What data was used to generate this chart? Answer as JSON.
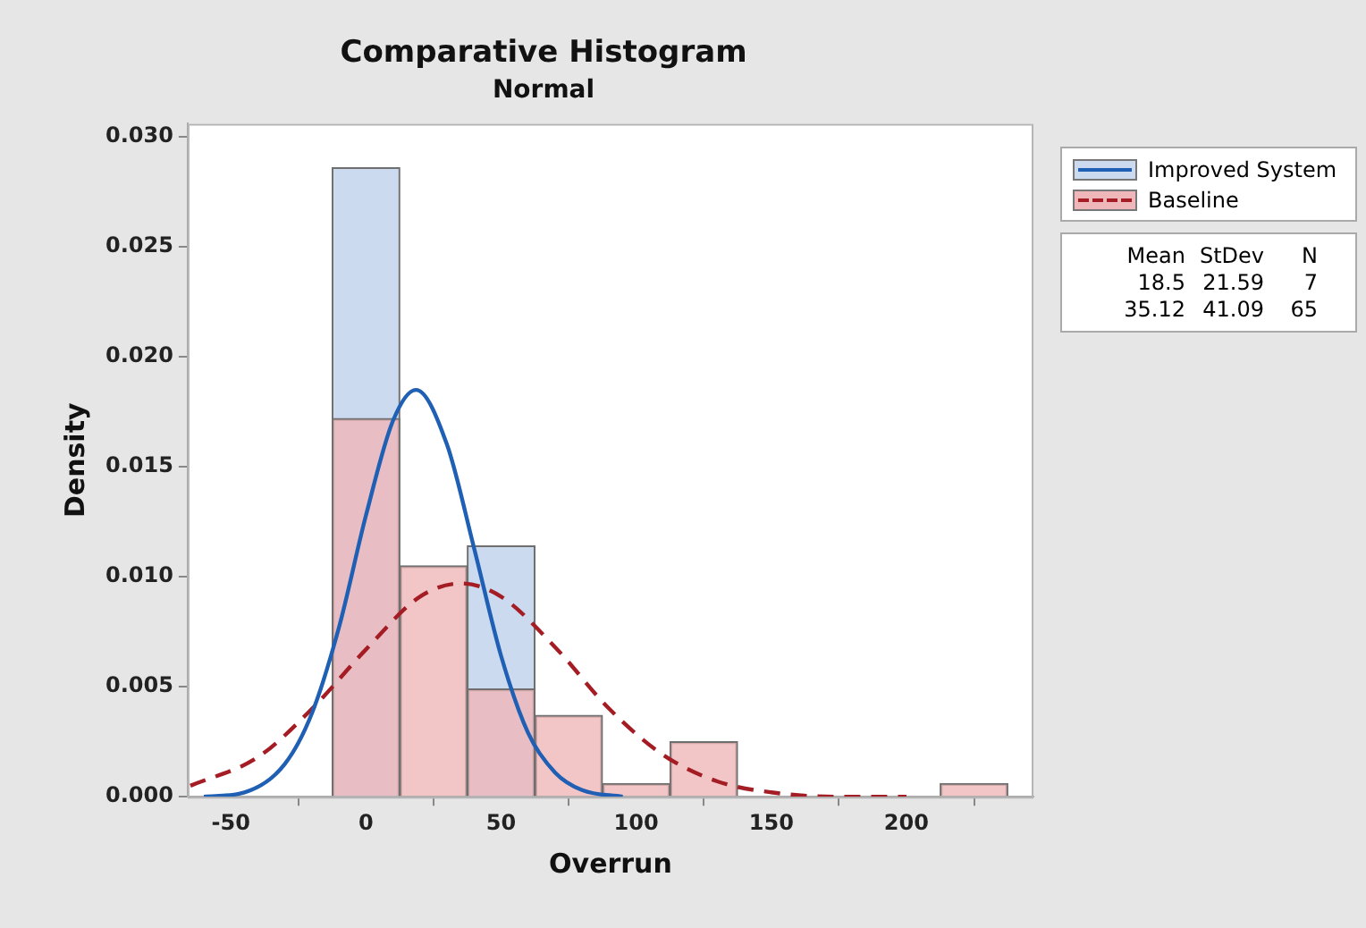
{
  "chart_data": {
    "type": "histogram",
    "title": "Comparative Histogram",
    "subtitle": "Normal",
    "xlabel": "Overrun",
    "ylabel": "Density",
    "bins": [
      -12.5,
      12.5,
      37.5,
      62.5,
      87.5,
      112.5,
      137.5,
      162.5,
      187.5,
      212.5,
      237.5
    ],
    "series": [
      {
        "name": "Improved System",
        "color": "#cbdaee",
        "values": [
          0.0286,
          0,
          0.0114,
          0,
          0,
          0,
          0,
          0,
          0,
          0
        ]
      },
      {
        "name": "Baseline",
        "color": "#efb7b9",
        "values": [
          0.0172,
          0.0105,
          0.0049,
          0.0037,
          0.0006,
          0.0025,
          0,
          0,
          0,
          0.0006
        ]
      },
      {
        "type": "line",
        "color": "#1f5fb4",
        "line_style": "solid",
        "x": [
          -60,
          -45,
          -30,
          -20,
          -10,
          0,
          10,
          18.5,
          30,
          40,
          50,
          60,
          70,
          80,
          95
        ],
        "values": [
          0,
          0.0002,
          0.0015,
          0.0038,
          0.0077,
          0.0128,
          0.0171,
          0.0185,
          0.016,
          0.0113,
          0.0064,
          0.0029,
          0.0011,
          0.0003,
          0
        ]
      },
      {
        "type": "line",
        "color": "#a51d24",
        "line_style": "dashed",
        "x": [
          -65,
          -40,
          -20,
          0,
          20,
          35.12,
          50,
          70,
          90,
          110,
          130,
          150,
          175,
          200
        ],
        "values": [
          0.0005,
          0.0018,
          0.004,
          0.0067,
          0.0091,
          0.0097,
          0.0091,
          0.0068,
          0.004,
          0.0019,
          0.0007,
          0.0002,
          0,
          0
        ]
      }
    ],
    "xlim": [
      -66,
      247
    ],
    "xticks": [
      -50,
      0,
      50,
      100,
      150,
      200
    ],
    "ylim": [
      0,
      0.0306
    ],
    "yticks": [
      {
        "value": 0,
        "label": "0.000"
      },
      {
        "value": 0.005,
        "label": "0.005"
      },
      {
        "value": 0.01,
        "label": "0.010"
      },
      {
        "value": 0.015,
        "label": "0.015"
      },
      {
        "value": 0.02,
        "label": "0.020"
      },
      {
        "value": 0.025,
        "label": "0.025"
      },
      {
        "value": 0.03,
        "label": "0.030"
      }
    ],
    "grid": false,
    "legend": "top right",
    "annotations": [
      "Mean",
      "StDev",
      "N",
      "18.5",
      "21.59",
      "7",
      "35.12",
      "41.09",
      "65"
    ]
  }
}
